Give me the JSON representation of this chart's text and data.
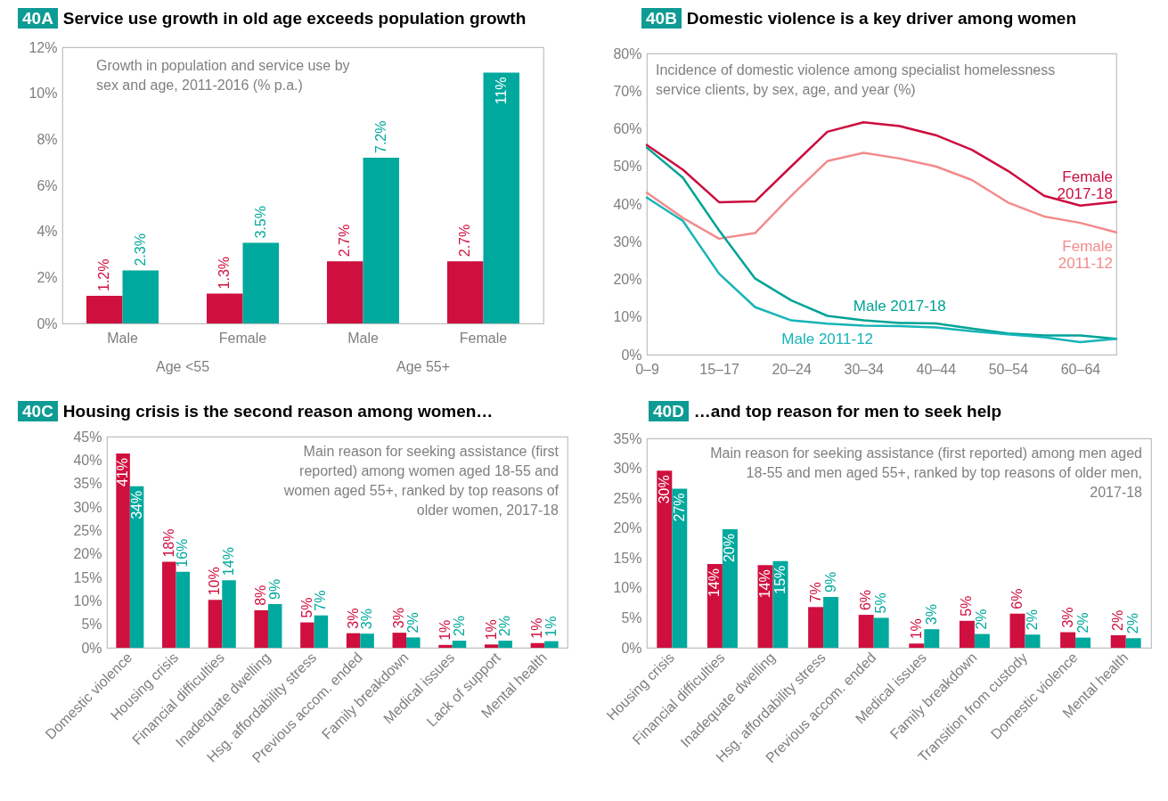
{
  "chart_data": [
    {
      "type": "bar",
      "title": "40A Service use growth in old age exceeds population growth",
      "subtitle": "Growth in population and service use by sex and age, 2011-2016 (% p.a.)",
      "categories": [
        "Male",
        "Female",
        "Male",
        "Female"
      ],
      "annotations": [
        "Age <55",
        "Age 55+"
      ],
      "series": [
        {
          "color": "#cf0f3e",
          "values": [
            1.2,
            1.3,
            2.7,
            2.7
          ],
          "value_labels": [
            "1.2%",
            "1.3%",
            "2.7%",
            "2.7%"
          ]
        },
        {
          "color": "#00a99d",
          "values": [
            2.3,
            3.5,
            7.2,
            10.9
          ],
          "value_labels": [
            "2.3%",
            "3.5%",
            "7.2%",
            "11%"
          ]
        }
      ],
      "ylim": [
        0,
        12
      ],
      "yticks": [
        {
          "value": 0,
          "label": "0%"
        },
        {
          "value": 2,
          "label": "2%"
        },
        {
          "value": 4,
          "label": "4%"
        },
        {
          "value": 6,
          "label": "6%"
        },
        {
          "value": 8,
          "label": "8%"
        },
        {
          "value": 10,
          "label": "10%"
        },
        {
          "value": 12,
          "label": "12%"
        }
      ]
    },
    {
      "type": "line",
      "title": "40B Domestic violence is a key driver among women",
      "subtitle": "Incidence of domestic violence among specialist homelessness service clients, by sex, age, and year (%)",
      "categories": [
        "0–9",
        null,
        "15–17",
        null,
        "20–24",
        null,
        "30–34",
        null,
        "40–44",
        null,
        "50–54",
        null,
        "60–64",
        null
      ],
      "series": [
        {
          "name": "Female 2017-18",
          "color": "#cc0c3e",
          "values": [
            55.7,
            49.1,
            40.5,
            40.7,
            50.0,
            59.2,
            61.7,
            60.7,
            58.3,
            54.4,
            48.8,
            42.2,
            39.6,
            40.6
          ]
        },
        {
          "name": "Female 2011-12",
          "color": "#f28b8b",
          "values": [
            43.0,
            36.3,
            30.8,
            32.3,
            42.2,
            51.4,
            53.6,
            52.1,
            50.0,
            46.4,
            40.4,
            36.7,
            35.0,
            32.5
          ]
        },
        {
          "name": "Male 2017-18",
          "color": "#00a396",
          "values": [
            55.0,
            47.0,
            33.0,
            20.2,
            14.4,
            10.3,
            9.1,
            8.4,
            8.3,
            6.9,
            5.6,
            5.1,
            5.1,
            4.2
          ]
        },
        {
          "name": "Male 2011-12",
          "color": "#17b4b8",
          "values": [
            41.7,
            35.5,
            21.5,
            12.6,
            9.1,
            8.2,
            7.7,
            7.6,
            7.2,
            6.2,
            5.4,
            4.6,
            3.3,
            4.2
          ]
        }
      ],
      "ylim": [
        0,
        80
      ],
      "yticks": [
        {
          "value": 0,
          "label": "0%"
        },
        {
          "value": 10,
          "label": "10%"
        },
        {
          "value": 20,
          "label": "20%"
        },
        {
          "value": 30,
          "label": "30%"
        },
        {
          "value": 40,
          "label": "40%"
        },
        {
          "value": 50,
          "label": "50%"
        },
        {
          "value": 60,
          "label": "60%"
        },
        {
          "value": 70,
          "label": "70%"
        },
        {
          "value": 80,
          "label": "80%"
        }
      ]
    },
    {
      "type": "bar",
      "title": "40C Housing crisis is the second reason among women…",
      "subtitle": "Main reason for seeking assistance (first reported) among women aged 18-55 and women aged 55+, ranked by top reasons of older women, 2017-18",
      "categories": [
        "Domestic violence",
        "Housing crisis",
        "Financial difficulties",
        "Inadequate dwelling",
        "Hsg. affordability stress",
        "Previous accom. ended",
        "Family breakdown",
        "Medical issues",
        "Lack of support",
        "Mental health"
      ],
      "series": [
        {
          "color": "#cf0f3e",
          "values": [
            41.4,
            18.3,
            10.2,
            8.0,
            5.4,
            3.1,
            3.2,
            0.6,
            0.7,
            1.0
          ],
          "value_labels": [
            "41%",
            "18%",
            "10%",
            "8%",
            "5%",
            "3%",
            "3%",
            "1%",
            "1%",
            "1%"
          ]
        },
        {
          "color": "#00a99d",
          "values": [
            34.4,
            16.2,
            14.4,
            9.3,
            6.9,
            3.0,
            2.2,
            1.5,
            1.5,
            1.4
          ],
          "value_labels": [
            "34%",
            "16%",
            "14%",
            "9%",
            "7%",
            "3%",
            "2%",
            "2%",
            "2%",
            "1%"
          ]
        }
      ],
      "ylim": [
        0,
        45
      ],
      "yticks": [
        {
          "value": 0,
          "label": "0%"
        },
        {
          "value": 5,
          "label": "5%"
        },
        {
          "value": 10,
          "label": "10%"
        },
        {
          "value": 15,
          "label": "15%"
        },
        {
          "value": 20,
          "label": "20%"
        },
        {
          "value": 25,
          "label": "25%"
        },
        {
          "value": 30,
          "label": "30%"
        },
        {
          "value": 35,
          "label": "35%"
        },
        {
          "value": 40,
          "label": "40%"
        },
        {
          "value": 45,
          "label": "45%"
        }
      ]
    },
    {
      "type": "bar",
      "title": "40D …and top reason for men to seek help",
      "subtitle": "Main reason for seeking assistance (first reported) among men aged 18-55 and men aged 55+, ranked by top reasons of older men, 2017-18",
      "categories": [
        "Housing crisis",
        "Financial difficulties",
        "Inadequate dwelling",
        "Hsg. affordability stress",
        "Previous accom. ended",
        "Medical issues",
        "Family breakdown",
        "Transition from custody",
        "Domestic violence",
        "Mental health"
      ],
      "series": [
        {
          "color": "#cf0f3e",
          "values": [
            29.6,
            14.0,
            13.8,
            6.8,
            5.5,
            0.7,
            4.5,
            5.7,
            2.6,
            2.1
          ],
          "value_labels": [
            "30%",
            "14%",
            "14%",
            "7%",
            "6%",
            "1%",
            "5%",
            "6%",
            "3%",
            "2%"
          ]
        },
        {
          "color": "#00a99d",
          "values": [
            26.6,
            19.8,
            14.5,
            8.5,
            5.0,
            3.1,
            2.3,
            2.2,
            1.7,
            1.6
          ],
          "value_labels": [
            "27%",
            "20%",
            "15%",
            "9%",
            "5%",
            "3%",
            "2%",
            "2%",
            "2%",
            "2%"
          ]
        }
      ],
      "ylim": [
        0,
        35
      ],
      "yticks": [
        {
          "value": 0,
          "label": "0%"
        },
        {
          "value": 5,
          "label": "5%"
        },
        {
          "value": 10,
          "label": "10%"
        },
        {
          "value": 15,
          "label": "15%"
        },
        {
          "value": 20,
          "label": "20%"
        },
        {
          "value": 25,
          "label": "25%"
        },
        {
          "value": 30,
          "label": "30%"
        },
        {
          "value": 35,
          "label": "35%"
        }
      ]
    }
  ]
}
